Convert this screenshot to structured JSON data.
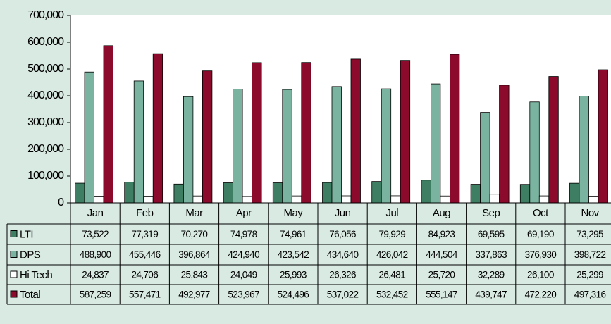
{
  "chart_data": {
    "type": "bar",
    "categories": [
      "Jan",
      "Feb",
      "Mar",
      "Apr",
      "May",
      "Jun",
      "Jul",
      "Aug",
      "Sep",
      "Oct",
      "Nov"
    ],
    "series": [
      {
        "name": "LTI",
        "color": "#3e7e62",
        "values": [
          73522,
          77319,
          70270,
          74978,
          74961,
          76056,
          79929,
          84923,
          69595,
          69190,
          73295
        ],
        "value_labels": [
          "73,522",
          "77,319",
          "70,270",
          "74,978",
          "74,961",
          "76,056",
          "79,929",
          "84,923",
          "69,595",
          "69,190",
          "73,295"
        ]
      },
      {
        "name": "DPS",
        "color": "#7ab4a1",
        "values": [
          488900,
          455446,
          396864,
          424940,
          423542,
          434640,
          426042,
          444504,
          337863,
          376930,
          398722
        ],
        "value_labels": [
          "488,900",
          "455,446",
          "396,864",
          "424,940",
          "423,542",
          "434,640",
          "426,042",
          "444,504",
          "337,863",
          "376,930",
          "398,722"
        ]
      },
      {
        "name": "Hi Tech",
        "color": "#ffffff",
        "values": [
          24837,
          24706,
          25843,
          24049,
          25993,
          26326,
          26481,
          25720,
          32289,
          26100,
          25299
        ],
        "value_labels": [
          "24,837",
          "24,706",
          "25,843",
          "24,049",
          "25,993",
          "26,326",
          "26,481",
          "25,720",
          "32,289",
          "26,100",
          "25,299"
        ]
      },
      {
        "name": "Total",
        "color": "#8c0a2b",
        "values": [
          587259,
          557471,
          492977,
          523967,
          524496,
          537022,
          532452,
          555147,
          439747,
          472220,
          497316
        ],
        "value_labels": [
          "587,259",
          "557,471",
          "492,977",
          "523,967",
          "524,496",
          "537,022",
          "532,452",
          "555,147",
          "439,747",
          "472,220",
          "497,316"
        ]
      }
    ],
    "ylim": [
      0,
      700000
    ],
    "yticks": [
      0,
      {
        "value": 100000,
        "label": "100,000"
      },
      {
        "value": 200000,
        "label": "200,000"
      },
      {
        "value": 300000,
        "label": "300,000"
      },
      {
        "value": 400000,
        "label": "400,000"
      },
      {
        "value": 500000,
        "label": "500,000"
      },
      {
        "value": 600000,
        "label": "600,000"
      },
      {
        "value": 700000,
        "label": "700,000"
      }
    ],
    "grid": false
  }
}
